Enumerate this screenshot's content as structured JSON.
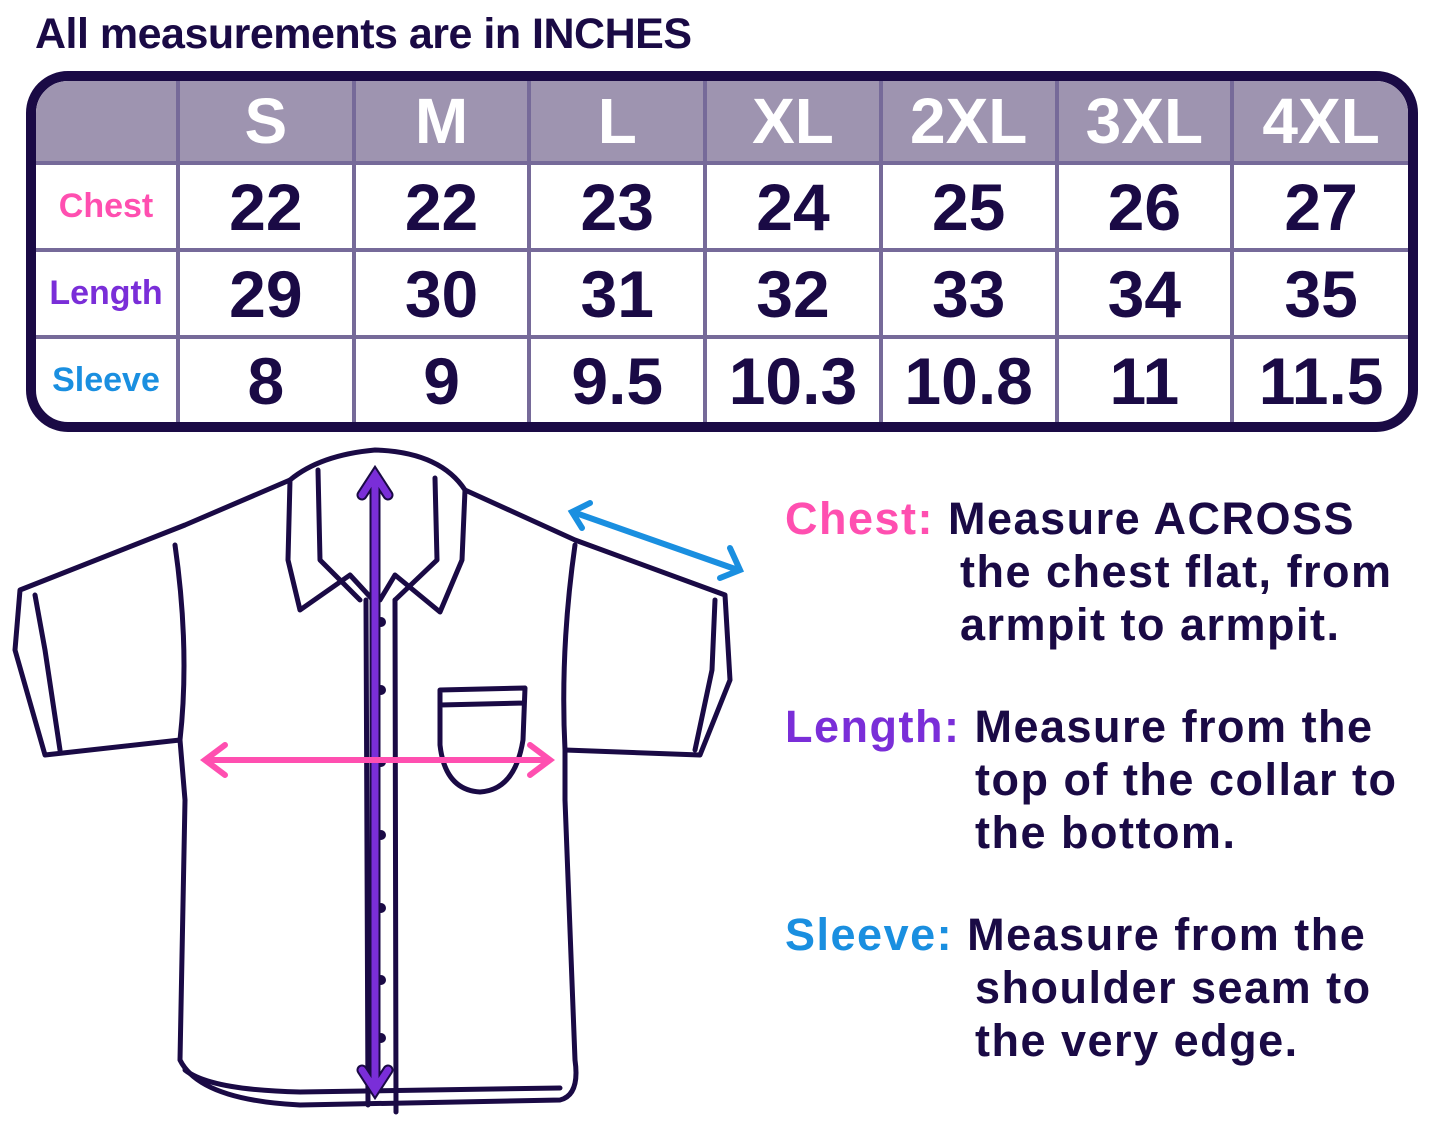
{
  "title": "All measurements are in INCHES",
  "colors": {
    "border": "#1a0a45",
    "header": "#9e94b0",
    "grid": "#766a99",
    "chest": "#ff4fb0",
    "length": "#7a2ed8",
    "sleeve": "#1a8fe0"
  },
  "table": {
    "sizes": [
      "S",
      "M",
      "L",
      "XL",
      "2XL",
      "3XL",
      "4XL"
    ],
    "rows": [
      {
        "label": "Chest",
        "values": [
          "22",
          "22",
          "23",
          "24",
          "25",
          "26",
          "27"
        ]
      },
      {
        "label": "Length",
        "values": [
          "29",
          "30",
          "31",
          "32",
          "33",
          "34",
          "35"
        ]
      },
      {
        "label": "Sleeve",
        "values": [
          "8",
          "9",
          "9.5",
          "10.3",
          "10.8",
          "11",
          "11.5"
        ]
      }
    ]
  },
  "instructions": [
    {
      "label": "Chest:",
      "lines": [
        "Measure ACROSS",
        "the chest flat, from",
        "armpit to armpit."
      ]
    },
    {
      "label": "Length:",
      "lines": [
        "Measure from the",
        "top of the collar to",
        "the bottom."
      ]
    },
    {
      "label": "Sleeve:",
      "lines": [
        "Measure from the",
        "shoulder seam to",
        "the very edge."
      ]
    }
  ]
}
